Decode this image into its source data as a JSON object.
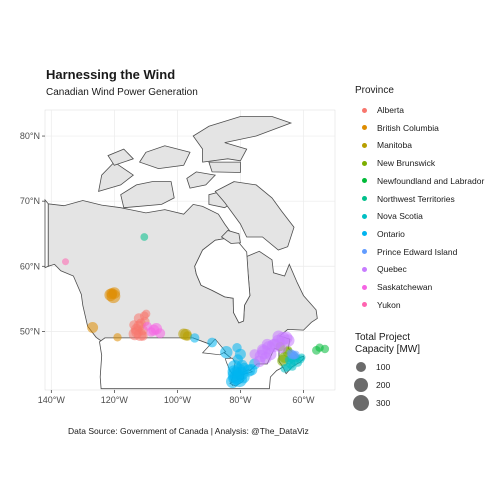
{
  "chart_data": {
    "type": "scatter",
    "title": "Harnessing the Wind",
    "subtitle": "Canadian Wind Power Generation",
    "caption": "Data Source: Government of Canada | Analysis: @The_DataViz",
    "xlim": [
      -142,
      -50
    ],
    "ylim": [
      41,
      84
    ],
    "x_ticks": [
      -140,
      -120,
      -100,
      -80,
      -60
    ],
    "x_tick_labels": [
      "140°W",
      "120°W",
      "100°W",
      "80°W",
      "60°W"
    ],
    "y_ticks": [
      50,
      60,
      70,
      80
    ],
    "y_tick_labels": [
      "50°N",
      "60°N",
      "70°N",
      "80°N"
    ],
    "grid": true,
    "legend_position": "right",
    "color_legend_title": "Province",
    "size_legend_title": [
      "Total Project",
      "Capacity [MW]"
    ],
    "size_legend": [
      100,
      200,
      300
    ],
    "series": [
      {
        "name": "Alberta",
        "color": "#F8766D",
        "points": [
          [
            -113.5,
            49.6,
            150
          ],
          [
            -112.8,
            49.9,
            120
          ],
          [
            -113.0,
            50.3,
            100
          ],
          [
            -111.8,
            49.5,
            150
          ],
          [
            -111.0,
            50.2,
            80
          ],
          [
            -112.2,
            50.8,
            100
          ],
          [
            -110.9,
            49.3,
            60
          ],
          [
            -111.6,
            51.2,
            80
          ],
          [
            -113.8,
            51.0,
            60
          ],
          [
            -112.2,
            52.0,
            80
          ],
          [
            -110.5,
            52.4,
            50
          ],
          [
            -109.9,
            52.7,
            40
          ],
          [
            -110.3,
            51.5,
            60
          ]
        ]
      },
      {
        "name": "British Columbia",
        "color": "#DE8C00",
        "points": [
          [
            -121.2,
            55.6,
            150
          ],
          [
            -120.3,
            55.4,
            200
          ],
          [
            -120.8,
            55.8,
            100
          ],
          [
            -120.0,
            55.9,
            120
          ],
          [
            -126.9,
            50.6,
            100
          ],
          [
            -119.0,
            49.1,
            40
          ]
        ]
      },
      {
        "name": "Manitoba",
        "color": "#B79F00",
        "points": [
          [
            -97.3,
            49.5,
            120
          ],
          [
            -98.0,
            49.6,
            100
          ],
          [
            -96.8,
            49.3,
            60
          ]
        ]
      },
      {
        "name": "New Brunswick",
        "color": "#7CAE00",
        "points": [
          [
            -66.5,
            45.5,
            120
          ],
          [
            -66.0,
            46.0,
            100
          ],
          [
            -65.0,
            46.8,
            80
          ],
          [
            -67.4,
            47.7,
            60
          ],
          [
            -64.9,
            47.1,
            50
          ]
        ]
      },
      {
        "name": "Newfoundland and Labrador",
        "color": "#00BA38",
        "points": [
          [
            -55.9,
            47.1,
            50
          ],
          [
            -53.2,
            47.3,
            40
          ],
          [
            -54.9,
            47.5,
            40
          ]
        ]
      },
      {
        "name": "Northwest Territories",
        "color": "#00C08B",
        "points": [
          [
            -110.5,
            64.5,
            30
          ]
        ]
      },
      {
        "name": "Nova Scotia",
        "color": "#00BFC4",
        "points": [
          [
            -63.0,
            45.5,
            60
          ],
          [
            -62.3,
            45.9,
            50
          ],
          [
            -61.8,
            45.2,
            40
          ],
          [
            -64.0,
            45.0,
            60
          ],
          [
            -64.5,
            45.6,
            50
          ],
          [
            -65.0,
            44.5,
            40
          ],
          [
            -61.0,
            45.7,
            40
          ],
          [
            -60.6,
            46.0,
            30
          ],
          [
            -63.5,
            44.6,
            40
          ],
          [
            -62.9,
            46.2,
            50
          ],
          [
            -63.8,
            45.8,
            40
          ],
          [
            -66.0,
            44.3,
            40
          ]
        ]
      },
      {
        "name": "Ontario",
        "color": "#00B4F0",
        "points": [
          [
            -81.5,
            43.3,
            300
          ],
          [
            -81.0,
            43.0,
            250
          ],
          [
            -80.3,
            42.6,
            250
          ],
          [
            -79.8,
            43.5,
            200
          ],
          [
            -81.8,
            44.5,
            220
          ],
          [
            -80.5,
            44.0,
            200
          ],
          [
            -82.5,
            42.3,
            180
          ],
          [
            -79.1,
            43.0,
            160
          ],
          [
            -77.3,
            44.0,
            140
          ],
          [
            -76.5,
            44.1,
            120
          ],
          [
            -75.5,
            45.0,
            100
          ],
          [
            -80.0,
            46.5,
            100
          ],
          [
            -84.5,
            46.8,
            150
          ],
          [
            -81.7,
            42.8,
            200
          ],
          [
            -82.0,
            43.8,
            180
          ],
          [
            -78.9,
            44.3,
            120
          ],
          [
            -94.5,
            49.0,
            60
          ],
          [
            -89.0,
            48.3,
            70
          ],
          [
            -81.1,
            47.5,
            60
          ],
          [
            -79.5,
            44.8,
            100
          ],
          [
            -80.8,
            45.7,
            80
          ]
        ]
      },
      {
        "name": "Prince Edward Island",
        "color": "#619CFF",
        "points": [
          [
            -63.5,
            46.4,
            60
          ],
          [
            -64.0,
            46.6,
            50
          ],
          [
            -63.0,
            46.3,
            40
          ],
          [
            -62.5,
            46.4,
            40
          ]
        ]
      },
      {
        "name": "Quebec",
        "color": "#C77CFF",
        "points": [
          [
            -72.5,
            46.8,
            200
          ],
          [
            -71.0,
            47.5,
            180
          ],
          [
            -69.5,
            47.8,
            180
          ],
          [
            -68.0,
            48.5,
            160
          ],
          [
            -66.5,
            48.9,
            180
          ],
          [
            -65.5,
            49.0,
            160
          ],
          [
            -64.8,
            48.6,
            150
          ],
          [
            -73.5,
            46.2,
            150
          ],
          [
            -74.0,
            45.4,
            120
          ],
          [
            -70.5,
            46.5,
            140
          ],
          [
            -72.0,
            45.9,
            120
          ],
          [
            -67.9,
            49.2,
            140
          ],
          [
            -71.5,
            48.0,
            100
          ],
          [
            -75.5,
            46.5,
            80
          ],
          [
            -69.0,
            48.0,
            120
          ],
          [
            -73.0,
            47.2,
            100
          ],
          [
            -67.0,
            47.4,
            80
          ]
        ]
      },
      {
        "name": "Saskatchewan",
        "color": "#F564E3",
        "points": [
          [
            -106.7,
            50.4,
            120
          ],
          [
            -107.5,
            50.2,
            100
          ],
          [
            -105.5,
            49.7,
            80
          ],
          [
            -108.3,
            49.9,
            60
          ],
          [
            -109.5,
            50.8,
            50
          ]
        ]
      },
      {
        "name": "Yukon",
        "color": "#FF64B0",
        "points": [
          [
            -135.5,
            60.7,
            20
          ]
        ]
      }
    ]
  }
}
